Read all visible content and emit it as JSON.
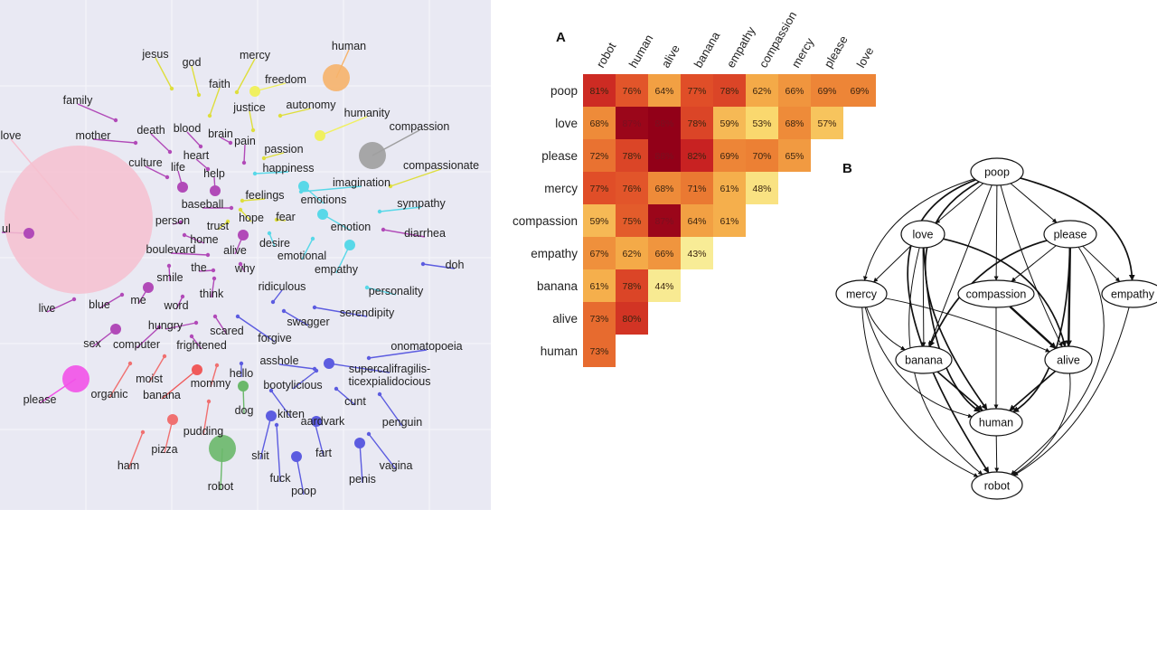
{
  "chart_data": [
    {
      "type": "scatter",
      "title": "",
      "grid": true,
      "words": [
        {
          "label": "jesus",
          "color": "#dede3c",
          "size": "small"
        },
        {
          "label": "god",
          "color": "#dede3c",
          "size": "small"
        },
        {
          "label": "mercy",
          "color": "#dede3c",
          "size": "small"
        },
        {
          "label": "faith",
          "color": "#dede3c",
          "size": "small"
        },
        {
          "label": "freedom",
          "color": "#f0f060",
          "size": "medium"
        },
        {
          "label": "human",
          "color": "#f6b36a",
          "size": "large"
        },
        {
          "label": "justice",
          "color": "#dede3c",
          "size": "small"
        },
        {
          "label": "autonomy",
          "color": "#dede3c",
          "size": "small"
        },
        {
          "label": "humanity",
          "color": "#f0f060",
          "size": "medium"
        },
        {
          "label": "family",
          "color": "#b14ab8",
          "size": "small"
        },
        {
          "label": "death",
          "color": "#b14ab8",
          "size": "small"
        },
        {
          "label": "blood",
          "color": "#b14ab8",
          "size": "small"
        },
        {
          "label": "brain",
          "color": "#b14ab8",
          "size": "small"
        },
        {
          "label": "compassion",
          "color": "#9e9e9e",
          "size": "large"
        },
        {
          "label": "mother",
          "color": "#b14ab8",
          "size": "small"
        },
        {
          "label": "pain",
          "color": "#b14ab8",
          "size": "small"
        },
        {
          "label": "passion",
          "color": "#dede3c",
          "size": "small"
        },
        {
          "label": "love",
          "color": "#f6bfcf",
          "size": "huge"
        },
        {
          "label": "heart",
          "color": "#b14ab8",
          "size": "small"
        },
        {
          "label": "culture",
          "color": "#b14ab8",
          "size": "small"
        },
        {
          "label": "life",
          "color": "#b14ab8",
          "size": "medium"
        },
        {
          "label": "happiness",
          "color": "#58d8e8",
          "size": "small"
        },
        {
          "label": "compassionate",
          "color": "#dede3c",
          "size": "small"
        },
        {
          "label": "help",
          "color": "#b14ab8",
          "size": "medium"
        },
        {
          "label": "imagination",
          "color": "#58d8e8",
          "size": "small"
        },
        {
          "label": "feelings",
          "color": "#dede3c",
          "size": "small"
        },
        {
          "label": "emotions",
          "color": "#58d8e8",
          "size": "medium"
        },
        {
          "label": "sympathy",
          "color": "#58d8e8",
          "size": "small"
        },
        {
          "label": "baseball",
          "color": "#b14ab8",
          "size": "small"
        },
        {
          "label": "hope",
          "color": "#dede3c",
          "size": "small"
        },
        {
          "label": "fear",
          "color": "#dede3c",
          "size": "small"
        },
        {
          "label": "person",
          "color": "#b14ab8",
          "size": "small"
        },
        {
          "label": "trust",
          "color": "#dede3c",
          "size": "small"
        },
        {
          "label": "emotion",
          "color": "#58d8e8",
          "size": "medium"
        },
        {
          "label": "diarrhea",
          "color": "#b14ab8",
          "size": "small"
        },
        {
          "label": "soul",
          "color": "#b14ab8",
          "size": "medium"
        },
        {
          "label": "home",
          "color": "#b14ab8",
          "size": "small"
        },
        {
          "label": "desire",
          "color": "#58d8e8",
          "size": "small"
        },
        {
          "label": "boulevard",
          "color": "#b14ab8",
          "size": "small"
        },
        {
          "label": "alive",
          "color": "#b14ab8",
          "size": "medium"
        },
        {
          "label": "emotional",
          "color": "#58d8e8",
          "size": "small"
        },
        {
          "label": "the",
          "color": "#b14ab8",
          "size": "small"
        },
        {
          "label": "why",
          "color": "#b14ab8",
          "size": "small"
        },
        {
          "label": "doh",
          "color": "#5c5ce0",
          "size": "small"
        },
        {
          "label": "empathy",
          "color": "#58d8e8",
          "size": "medium"
        },
        {
          "label": "smile",
          "color": "#b14ab8",
          "size": "small"
        },
        {
          "label": "personality",
          "color": "#58d8e8",
          "size": "small"
        },
        {
          "label": "ridiculous",
          "color": "#5c5ce0",
          "size": "small"
        },
        {
          "label": "think",
          "color": "#b14ab8",
          "size": "small"
        },
        {
          "label": "me",
          "color": "#b14ab8",
          "size": "medium"
        },
        {
          "label": "live",
          "color": "#b14ab8",
          "size": "small"
        },
        {
          "label": "blue",
          "color": "#b14ab8",
          "size": "small"
        },
        {
          "label": "word",
          "color": "#b14ab8",
          "size": "small"
        },
        {
          "label": "serendipity",
          "color": "#5c5ce0",
          "size": "small"
        },
        {
          "label": "swagger",
          "color": "#5c5ce0",
          "size": "small"
        },
        {
          "label": "hungry",
          "color": "#b14ab8",
          "size": "small"
        },
        {
          "label": "scared",
          "color": "#b14ab8",
          "size": "small"
        },
        {
          "label": "forgive",
          "color": "#5c5ce0",
          "size": "small"
        },
        {
          "label": "sex",
          "color": "#b14ab8",
          "size": "medium"
        },
        {
          "label": "computer",
          "color": "#b14ab8",
          "size": "small"
        },
        {
          "label": "frightened",
          "color": "#b14ab8",
          "size": "small"
        },
        {
          "label": "onomatopoeia",
          "color": "#5c5ce0",
          "size": "small"
        },
        {
          "label": "asshole",
          "color": "#5c5ce0",
          "size": "small"
        },
        {
          "label": "moist",
          "color": "#f07070",
          "size": "small"
        },
        {
          "label": "hello",
          "color": "#5c5ce0",
          "size": "small"
        },
        {
          "label": "supercalifragilisticexpialidocious",
          "color": "#5c5ce0",
          "size": "medium"
        },
        {
          "label": "please",
          "color": "#f252e8",
          "size": "large"
        },
        {
          "label": "organic",
          "color": "#f07070",
          "size": "small"
        },
        {
          "label": "banana",
          "color": "#f05a5a",
          "size": "medium"
        },
        {
          "label": "mommy",
          "color": "#f07070",
          "size": "small"
        },
        {
          "label": "bootylicious",
          "color": "#5c5ce0",
          "size": "small"
        },
        {
          "label": "cunt",
          "color": "#5c5ce0",
          "size": "small"
        },
        {
          "label": "dog",
          "color": "#6ab86a",
          "size": "medium"
        },
        {
          "label": "kitten",
          "color": "#5c5ce0",
          "size": "small"
        },
        {
          "label": "aardvark",
          "color": "#5c5ce0",
          "size": "medium"
        },
        {
          "label": "penguin",
          "color": "#5c5ce0",
          "size": "small"
        },
        {
          "label": "pudding",
          "color": "#f07070",
          "size": "small"
        },
        {
          "label": "pizza",
          "color": "#f07070",
          "size": "medium"
        },
        {
          "label": "ham",
          "color": "#f07070",
          "size": "small"
        },
        {
          "label": "robot",
          "color": "#6ab86a",
          "size": "large"
        },
        {
          "label": "shit",
          "color": "#5c5ce0",
          "size": "medium"
        },
        {
          "label": "fart",
          "color": "#5c5ce0",
          "size": "small"
        },
        {
          "label": "penis",
          "color": "#5c5ce0",
          "size": "medium"
        },
        {
          "label": "vagina",
          "color": "#5c5ce0",
          "size": "small"
        },
        {
          "label": "fuck",
          "color": "#5c5ce0",
          "size": "small"
        },
        {
          "label": "poop",
          "color": "#5c5ce0",
          "size": "medium"
        }
      ]
    },
    {
      "type": "heatmap",
      "panel_label": "A",
      "columns": [
        "robot",
        "human",
        "alive",
        "banana",
        "empathy",
        "compassion",
        "mercy",
        "please",
        "love"
      ],
      "rows": [
        {
          "label": "poop",
          "values": [
            81,
            76,
            64,
            77,
            78,
            62,
            66,
            69,
            69
          ]
        },
        {
          "label": "love",
          "values": [
            68,
            87,
            88,
            78,
            59,
            53,
            68,
            57
          ]
        },
        {
          "label": "please",
          "values": [
            72,
            78,
            88,
            82,
            69,
            70,
            65
          ]
        },
        {
          "label": "mercy",
          "values": [
            77,
            76,
            68,
            71,
            61,
            48
          ]
        },
        {
          "label": "compassion",
          "values": [
            59,
            75,
            87,
            64,
            61
          ]
        },
        {
          "label": "empathy",
          "values": [
            67,
            62,
            66,
            43
          ]
        },
        {
          "label": "banana",
          "values": [
            61,
            78,
            44
          ]
        },
        {
          "label": "alive",
          "values": [
            73,
            80
          ]
        },
        {
          "label": "human",
          "values": [
            73
          ]
        }
      ],
      "value_suffix": "%"
    },
    {
      "type": "diagram",
      "panel_label": "B",
      "nodes": [
        "poop",
        "love",
        "please",
        "mercy",
        "compassion",
        "empathy",
        "banana",
        "alive",
        "human",
        "robot"
      ],
      "edges": [
        {
          "from": "poop",
          "to": "love",
          "weight": 1
        },
        {
          "from": "poop",
          "to": "please",
          "weight": 1
        },
        {
          "from": "poop",
          "to": "mercy",
          "weight": 1
        },
        {
          "from": "poop",
          "to": "compassion",
          "weight": 1
        },
        {
          "from": "poop",
          "to": "empathy",
          "weight": 2
        },
        {
          "from": "poop",
          "to": "banana",
          "weight": 1
        },
        {
          "from": "poop",
          "to": "alive",
          "weight": 1
        },
        {
          "from": "poop",
          "to": "human",
          "weight": 2
        },
        {
          "from": "poop",
          "to": "robot",
          "weight": 2
        },
        {
          "from": "love",
          "to": "mercy",
          "weight": 1
        },
        {
          "from": "love",
          "to": "banana",
          "weight": 1
        },
        {
          "from": "love",
          "to": "alive",
          "weight": 2
        },
        {
          "from": "love",
          "to": "human",
          "weight": 2
        },
        {
          "from": "love",
          "to": "robot",
          "weight": 1
        },
        {
          "from": "please",
          "to": "compassion",
          "weight": 1
        },
        {
          "from": "please",
          "to": "empathy",
          "weight": 1
        },
        {
          "from": "please",
          "to": "banana",
          "weight": 2
        },
        {
          "from": "please",
          "to": "alive",
          "weight": 3
        },
        {
          "from": "please",
          "to": "human",
          "weight": 2
        },
        {
          "from": "please",
          "to": "robot",
          "weight": 1
        },
        {
          "from": "mercy",
          "to": "banana",
          "weight": 1
        },
        {
          "from": "mercy",
          "to": "alive",
          "weight": 1
        },
        {
          "from": "mercy",
          "to": "human",
          "weight": 1
        },
        {
          "from": "mercy",
          "to": "robot",
          "weight": 1
        },
        {
          "from": "compassion",
          "to": "alive",
          "weight": 3
        },
        {
          "from": "compassion",
          "to": "human",
          "weight": 1
        },
        {
          "from": "empathy",
          "to": "robot",
          "weight": 1
        },
        {
          "from": "banana",
          "to": "human",
          "weight": 2
        },
        {
          "from": "alive",
          "to": "human",
          "weight": 2
        },
        {
          "from": "alive",
          "to": "robot",
          "weight": 1
        },
        {
          "from": "human",
          "to": "robot",
          "weight": 1
        }
      ]
    }
  ]
}
